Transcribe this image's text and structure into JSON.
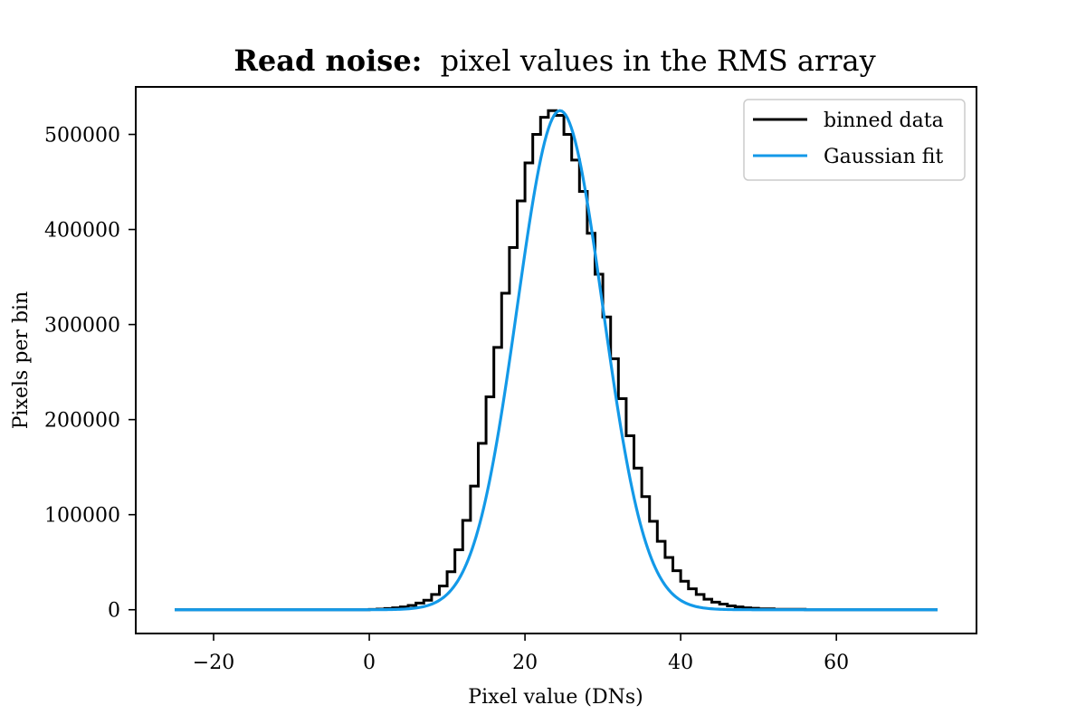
{
  "chart_data": {
    "type": "line",
    "title": {
      "bold": "Read noise:",
      "rest": "pixel values in the RMS array"
    },
    "xlabel": "Pixel value (DNs)",
    "ylabel": "Pixels per bin",
    "xlim": [
      -30,
      78
    ],
    "ylim": [
      -25000,
      550000
    ],
    "xticks": [
      -20,
      0,
      20,
      40,
      60
    ],
    "xtick_labels": [
      "−20",
      "0",
      "20",
      "40",
      "60"
    ],
    "yticks": [
      0,
      100000,
      200000,
      300000,
      400000,
      500000
    ],
    "ytick_labels": [
      "0",
      "100000",
      "200000",
      "300000",
      "400000",
      "500000"
    ],
    "grid": false,
    "legend_position": "top-right",
    "colors": {
      "histogram": "#000000",
      "fit": "#1399e8"
    },
    "series": [
      {
        "name": "binned data",
        "kind": "step-histogram",
        "x_start": -25,
        "x_end": 73,
        "bin_edges": [
          -25,
          0,
          1,
          2,
          3,
          4,
          5,
          6,
          7,
          8,
          9,
          10,
          11,
          12,
          13,
          14,
          15,
          16,
          17,
          18,
          19,
          20,
          21,
          22,
          23,
          24,
          25,
          26,
          27,
          28,
          29,
          30,
          31,
          32,
          33,
          34,
          35,
          36,
          37,
          38,
          39,
          40,
          41,
          42,
          43,
          44,
          45,
          46,
          47,
          48,
          49,
          50,
          52,
          56,
          73
        ],
        "counts": [
          0,
          300,
          700,
          1300,
          2000,
          3000,
          4500,
          7000,
          10000,
          16000,
          25000,
          40000,
          63000,
          94000,
          130000,
          175000,
          224000,
          276000,
          333000,
          381000,
          430000,
          470000,
          500000,
          518000,
          525000,
          520000,
          500000,
          473000,
          440000,
          396000,
          353000,
          308000,
          264000,
          222000,
          183000,
          149000,
          119000,
          93000,
          72000,
          55000,
          41000,
          30000,
          22000,
          16000,
          11000,
          8000,
          6000,
          4000,
          3000,
          2000,
          1500,
          1000,
          500,
          0
        ]
      },
      {
        "name": "Gaussian fit",
        "kind": "gaussian",
        "x_start": -25,
        "x_end": 73,
        "amplitude": 525000,
        "mean": 24.5,
        "sigma": 5.5
      }
    ]
  }
}
